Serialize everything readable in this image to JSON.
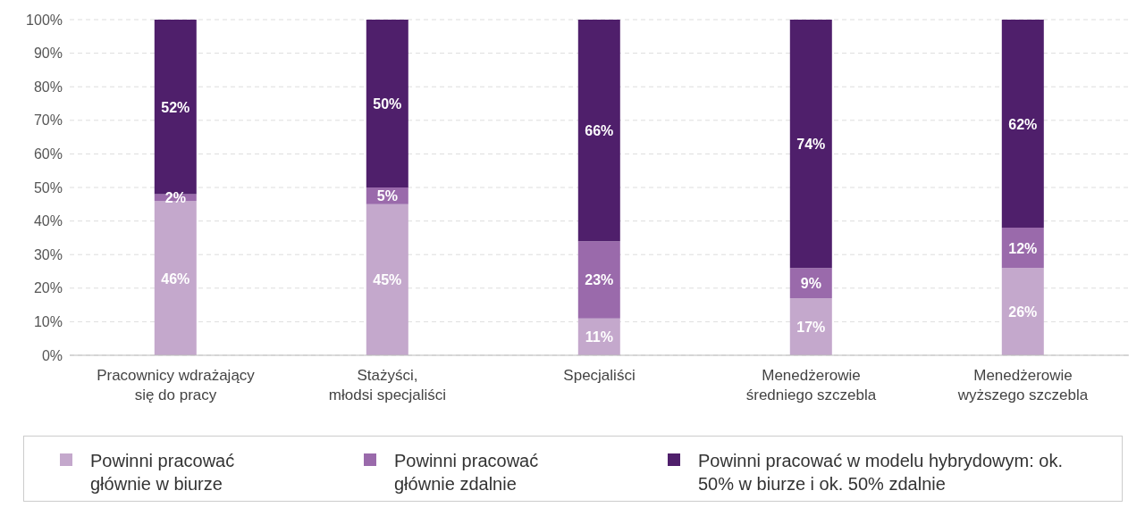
{
  "chart_data": {
    "type": "bar",
    "stacked": true,
    "categories": [
      "Pracownicy wdrażający\nsię do pracy",
      "Stażyści,\nmłodsi specjaliści",
      "Specjaliści",
      "Menedżerowie\nśredniego szczebla",
      "Menedżerowie\nwyższego szczebla"
    ],
    "series": [
      {
        "name": "Powinni pracować głównie w biurze",
        "color": "#c4a8cc",
        "values": [
          46,
          45,
          11,
          17,
          26
        ],
        "value_labels": [
          "46%",
          "45%",
          "11%",
          "17%",
          "26%"
        ]
      },
      {
        "name": "Powinni pracować głównie zdalnie",
        "color": "#9a6aab",
        "values": [
          2,
          5,
          23,
          9,
          12
        ],
        "value_labels": [
          "2%",
          "5%",
          "23%",
          "9%",
          "12%"
        ]
      },
      {
        "name": "Powinni pracować w modelu hybrydowym: ok. 50% w biurze i ok. 50% zdalnie",
        "color": "#4f1f6b",
        "values": [
          52,
          50,
          66,
          74,
          62
        ],
        "value_labels": [
          "52%",
          "50%",
          "66%",
          "74%",
          "62%"
        ]
      }
    ],
    "ylim": [
      0,
      100
    ],
    "yticks": [
      {
        "value": 0,
        "label": "0%"
      },
      {
        "value": 10,
        "label": "10%"
      },
      {
        "value": 20,
        "label": "20%"
      },
      {
        "value": 30,
        "label": "30%"
      },
      {
        "value": 40,
        "label": "40%"
      },
      {
        "value": 50,
        "label": "50%"
      },
      {
        "value": 60,
        "label": "60%"
      },
      {
        "value": 70,
        "label": "70%"
      },
      {
        "value": 80,
        "label": "80%"
      },
      {
        "value": 90,
        "label": "90%"
      },
      {
        "value": 100,
        "label": "100%"
      }
    ],
    "grid": "y",
    "legend": "bottom"
  }
}
